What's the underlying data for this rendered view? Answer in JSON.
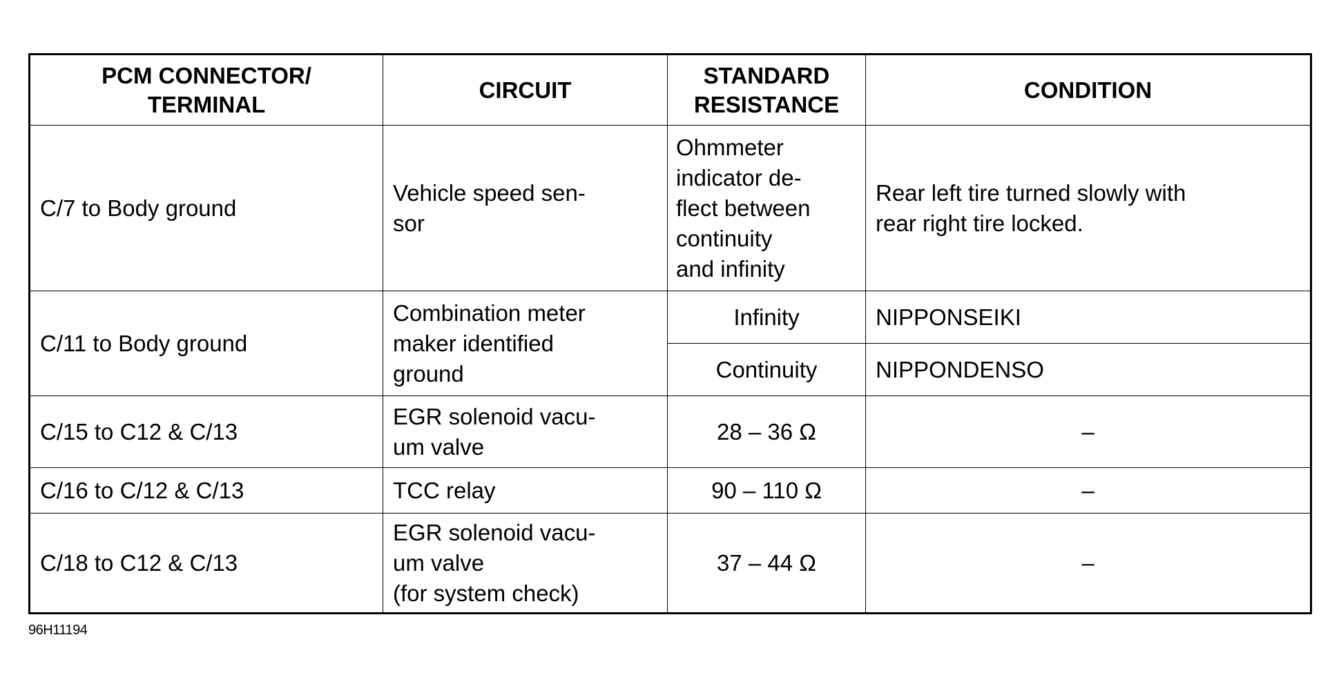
{
  "table": {
    "headers": [
      "PCM CONNECTOR/\nTERMINAL",
      "CIRCUIT",
      "STANDARD\nRESISTANCE",
      "CONDITION"
    ],
    "rows": [
      {
        "terminal": "C/7 to Body ground",
        "circuit": "Vehicle speed sen-\nsor",
        "resistance": "Ohmmeter\nindicator de-\nflect between\ncontinuity\nand infinity",
        "condition": "Rear left tire turned slowly with\nrear right tire locked."
      },
      {
        "terminal": "C/11 to Body ground",
        "circuit": "Combination meter\nmaker identified\nground",
        "sub": [
          {
            "resistance": "Infinity",
            "condition": "NIPPONSEIKI"
          },
          {
            "resistance": "Continuity",
            "condition": "NIPPONDENSO"
          }
        ]
      },
      {
        "terminal": "C/15 to C12 & C/13",
        "circuit": "EGR solenoid vacu-\num valve",
        "resistance": "28 – 36 Ω",
        "condition": "–"
      },
      {
        "terminal": "C/16 to C/12 & C/13",
        "circuit": "TCC relay",
        "resistance": "90 – 110 Ω",
        "condition": "–"
      },
      {
        "terminal": "C/18 to C12 & C/13",
        "circuit": "EGR solenoid vacu-\num valve\n(for system check)",
        "resistance": "37 – 44 Ω",
        "condition": "–"
      }
    ]
  },
  "caption": "96H11194"
}
